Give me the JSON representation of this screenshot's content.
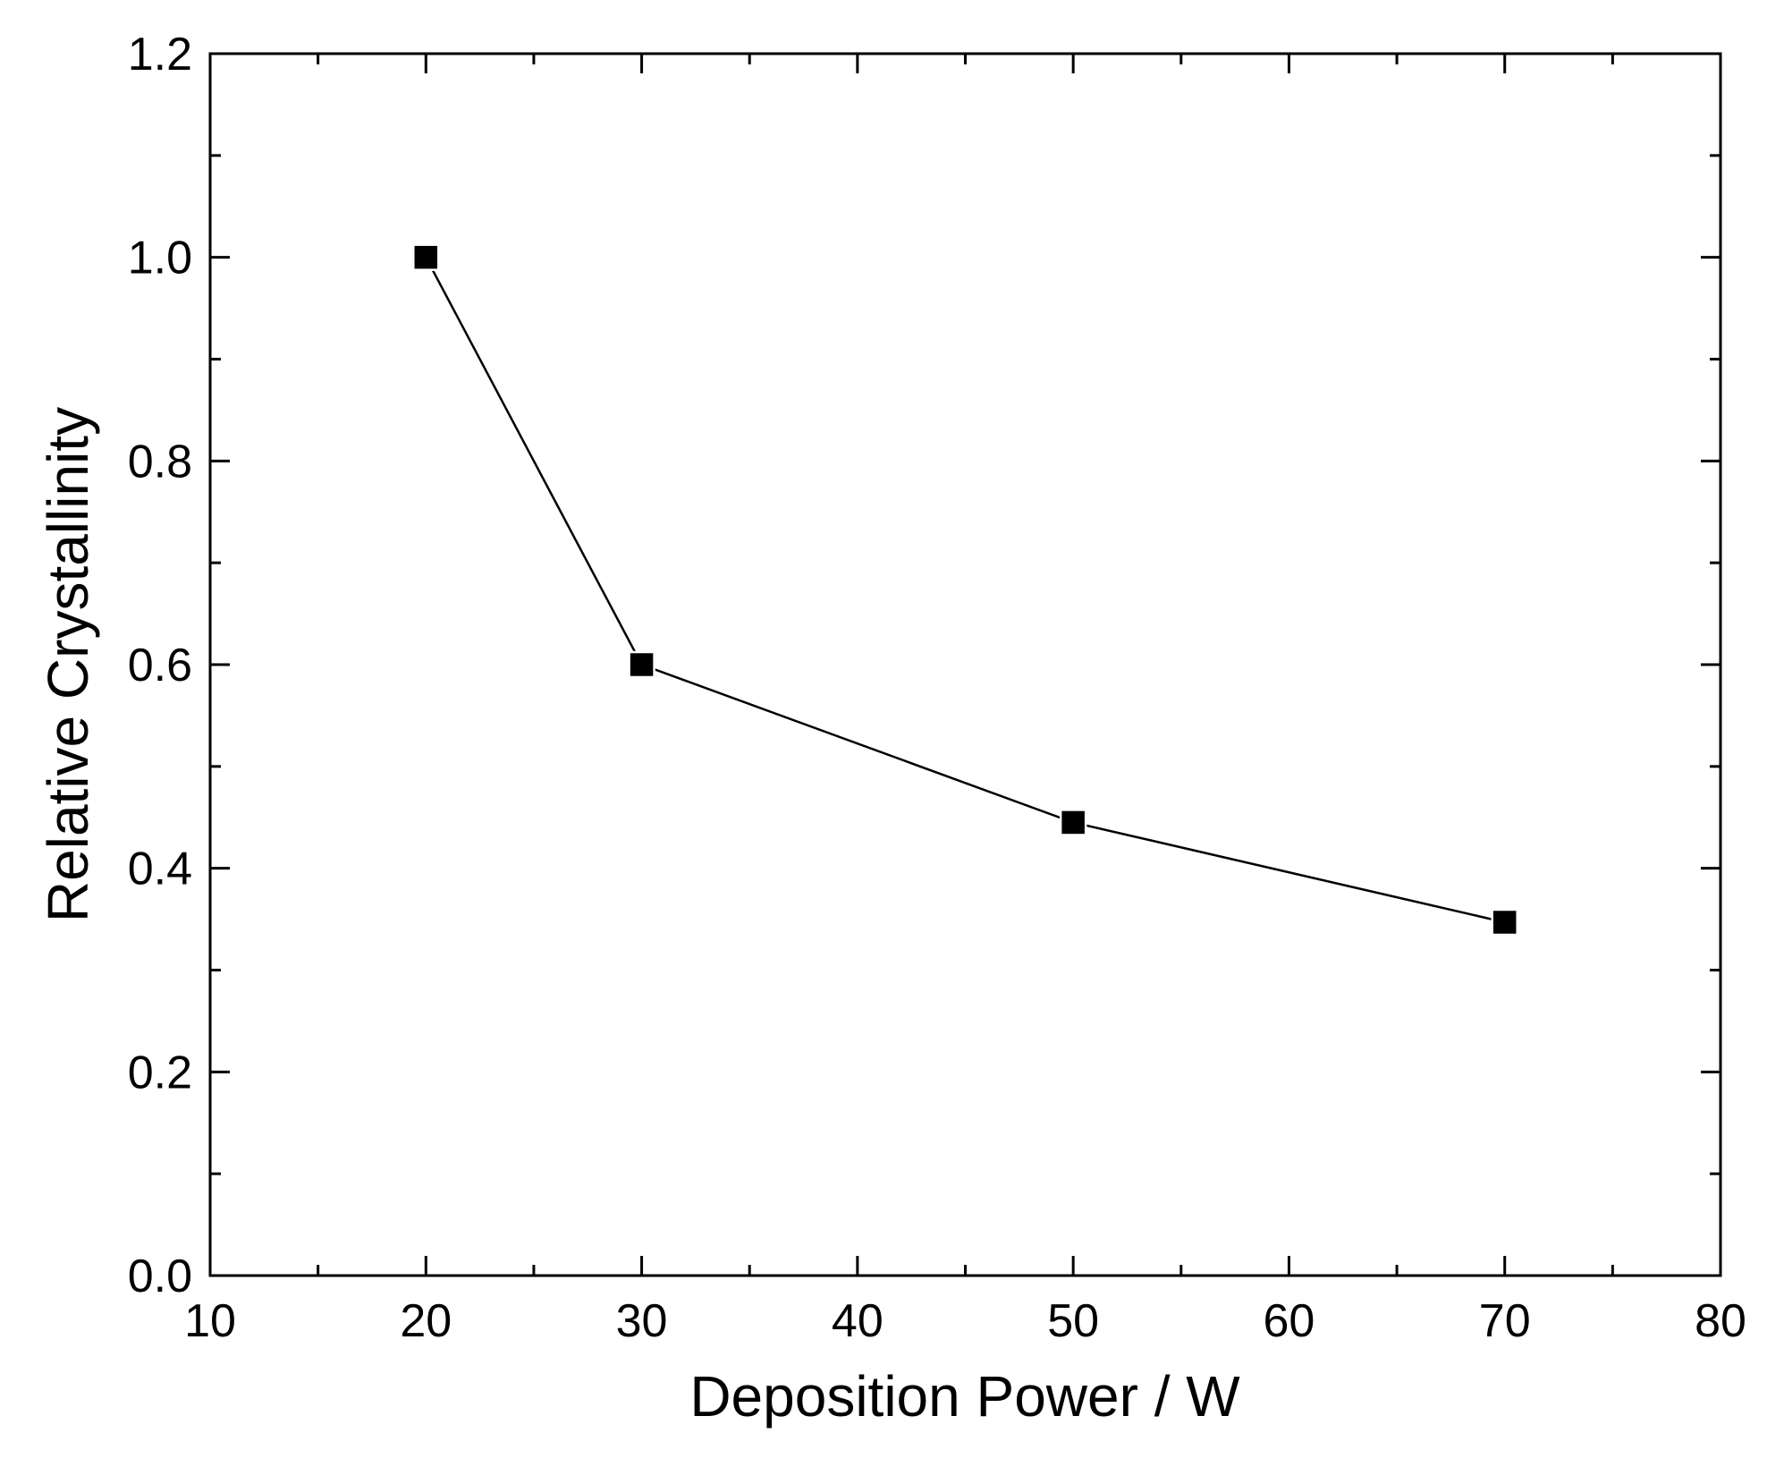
{
  "chart_data": {
    "type": "line",
    "title": "",
    "xlabel": "Deposition Power / W",
    "ylabel": "Relative Crystallinity",
    "xlim": [
      10,
      80
    ],
    "ylim": [
      0.0,
      1.2
    ],
    "x_ticks": [
      "10",
      "20",
      "30",
      "40",
      "50",
      "60",
      "70",
      "80"
    ],
    "y_ticks": [
      "0.0",
      "0.2",
      "0.4",
      "0.6",
      "0.8",
      "1.0",
      "1.2"
    ],
    "x_minor_step": 5,
    "y_minor_step": 0.1,
    "grid": false,
    "series": [
      {
        "name": "Relative Crystallinity",
        "marker": "square",
        "color": "#000000",
        "x": [
          20,
          30,
          50,
          70
        ],
        "values": [
          1.0,
          0.6,
          0.445,
          0.347
        ]
      }
    ]
  }
}
